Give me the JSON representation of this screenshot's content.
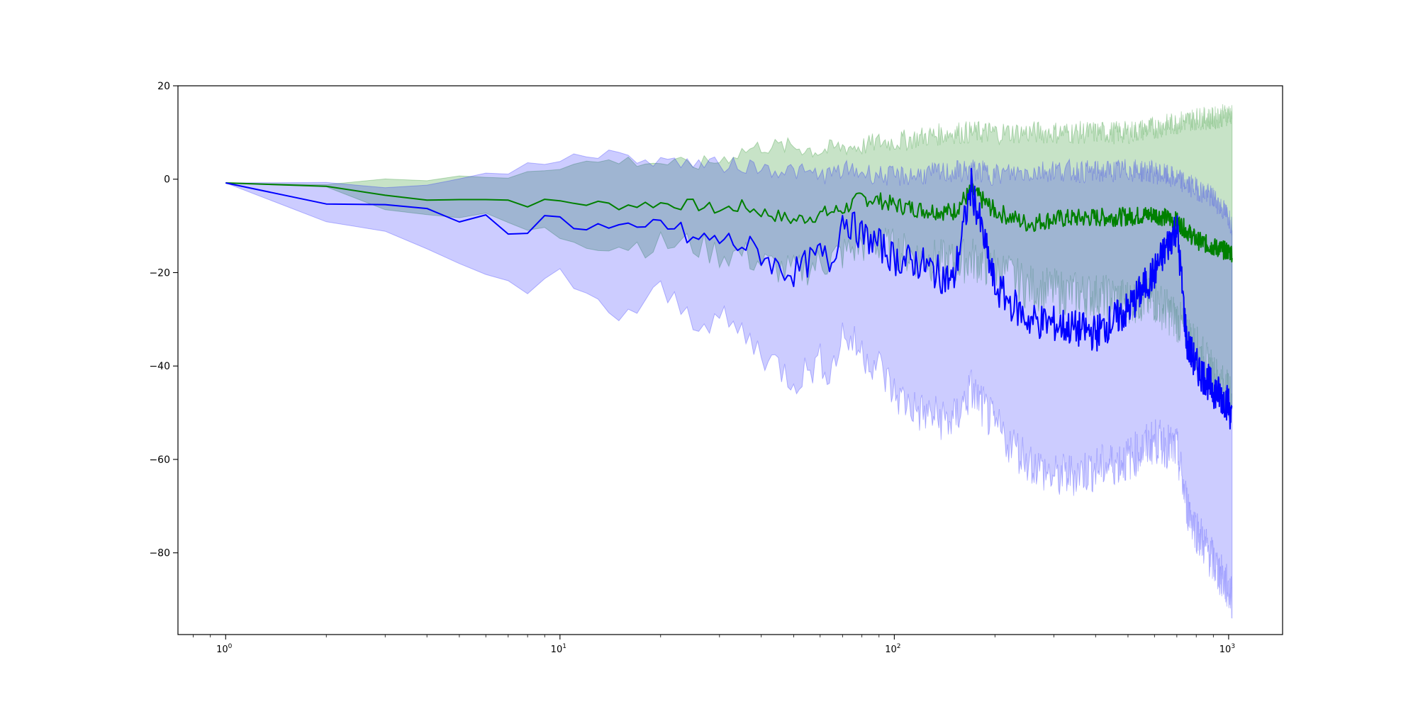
{
  "chart_data": {
    "type": "line",
    "title": "",
    "xlabel": "",
    "ylabel": "",
    "xscale": "log",
    "xlim": [
      0.72,
      1450
    ],
    "ylim": [
      -97.5,
      20
    ],
    "grid": false,
    "legend": "none",
    "x_tick_labels": [
      {
        "value": 1,
        "base": "10",
        "exp": "0"
      },
      {
        "value": 10,
        "base": "10",
        "exp": "1"
      },
      {
        "value": 100,
        "base": "10",
        "exp": "2"
      },
      {
        "value": 1000,
        "base": "10",
        "exp": "3"
      }
    ],
    "y_ticks": [
      20,
      0,
      -20,
      -40,
      -60,
      -80
    ],
    "y_tick_labels": [
      "20",
      "0",
      "−20",
      "−40",
      "−60",
      "−80"
    ],
    "series": [
      {
        "color": "#008000",
        "band_color": "#008000",
        "band_opacity": 0.22,
        "x": [
          1,
          2,
          3,
          4,
          5,
          7,
          8,
          10,
          15,
          20,
          25,
          30,
          35,
          40,
          50,
          60,
          70,
          80,
          90,
          100,
          120,
          150,
          170,
          200,
          250,
          300,
          400,
          500,
          600,
          700,
          800,
          900,
          1000,
          1024
        ],
        "y": [
          -0.8,
          -1.5,
          -3.5,
          -4,
          -4,
          -4.5,
          -5.2,
          -4.8,
          -5.6,
          -5.2,
          -5.5,
          -6.6,
          -5.8,
          -7,
          -8.8,
          -7.5,
          -6.5,
          -4,
          -4.5,
          -5.5,
          -6.5,
          -7,
          -2.5,
          -6.8,
          -9.5,
          -8.5,
          -8.2,
          -8,
          -7.5,
          -9,
          -13,
          -14.5,
          -15.5,
          -15.7
        ],
        "lower": [
          -0.8,
          -1.9,
          -5.5,
          -7,
          -8,
          -9.5,
          -11,
          -12,
          -14,
          -14,
          -14,
          -16,
          -16,
          -18,
          -20,
          -18,
          -16,
          -14,
          -14,
          -15,
          -17,
          -18,
          -17,
          -19,
          -23,
          -24,
          -25,
          -26,
          -26,
          -30,
          -36,
          -42,
          -46,
          -46
        ],
        "upper": [
          -0.8,
          -0.9,
          -0.5,
          -0.2,
          0.3,
          0.8,
          2,
          3,
          4,
          3.5,
          3,
          4,
          6,
          7,
          7,
          6,
          7,
          7,
          8,
          8,
          9,
          10,
          10,
          10,
          10,
          10,
          10,
          10,
          11,
          12,
          13,
          13,
          14,
          14
        ]
      },
      {
        "color": "#0000ff",
        "band_color": "#0000ff",
        "band_opacity": 0.2,
        "x": [
          1,
          2,
          3,
          4,
          5,
          6,
          7,
          8,
          9,
          10,
          12,
          15,
          17,
          20,
          25,
          30,
          35,
          40,
          45,
          50,
          55,
          60,
          65,
          70,
          80,
          90,
          100,
          120,
          150,
          170,
          200,
          250,
          300,
          400,
          500,
          600,
          700,
          750,
          800,
          900,
          1000,
          1024
        ],
        "y": [
          -0.8,
          -4.8,
          -6.5,
          -7.2,
          -8.8,
          -8.6,
          -10.3,
          -10.6,
          -8.8,
          -8.2,
          -10,
          -11,
          -12,
          -9,
          -13,
          -13,
          -14,
          -16,
          -19,
          -20,
          -18,
          -16,
          -18,
          -8,
          -12,
          -14,
          -17,
          -18,
          -22,
          -1.5,
          -23,
          -30,
          -31,
          -33,
          -28,
          -20,
          -10,
          -35,
          -40,
          -45,
          -48,
          -52
        ],
        "lower": [
          -0.8,
          -9,
          -12,
          -14.5,
          -18,
          -18.5,
          -22,
          -24,
          -23,
          -21,
          -26,
          -29,
          -28,
          -24,
          -30,
          -30,
          -33,
          -37,
          -40,
          -43,
          -41,
          -39,
          -41,
          -33,
          -37,
          -40,
          -46,
          -50,
          -52,
          -45,
          -53,
          -60,
          -64,
          -62,
          -60,
          -56,
          -58,
          -70,
          -75,
          -82,
          -88,
          -90
        ],
        "upper": [
          -0.8,
          -0.8,
          -1.2,
          -0.6,
          0.2,
          0.8,
          1.5,
          2.5,
          3.5,
          4.5,
          5.5,
          5,
          4.5,
          4,
          3.5,
          3,
          3,
          2.5,
          2,
          1.8,
          1.2,
          1,
          1,
          2,
          1.5,
          1,
          0.5,
          1,
          1.5,
          2,
          1,
          1.5,
          2,
          1.5,
          2,
          1.5,
          0,
          -1,
          -2,
          -4,
          -8,
          -10
        ]
      }
    ]
  }
}
